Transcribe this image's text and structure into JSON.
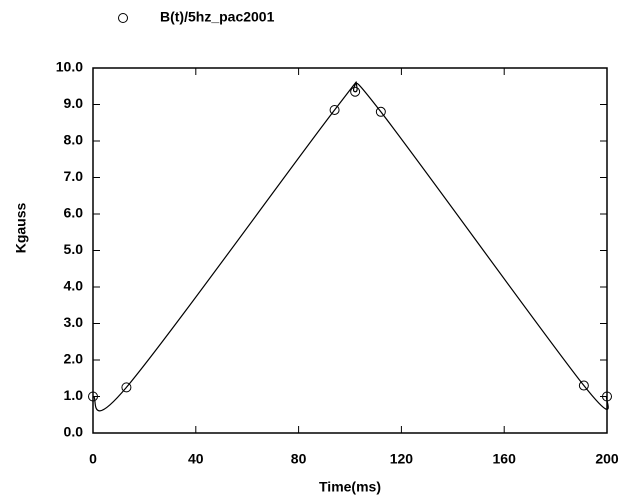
{
  "chart_data": {
    "type": "line",
    "x_label": "Time(ms)",
    "y_label": "Kgauss",
    "xlim": [
      0,
      200
    ],
    "xticks": [
      0,
      40,
      80,
      120,
      160,
      200
    ],
    "ylim": [
      0,
      10
    ],
    "yticks": [
      {
        "value": 0,
        "label": "0.0"
      },
      {
        "value": 1,
        "label": "1.0"
      },
      {
        "value": 2,
        "label": "2.0"
      },
      {
        "value": 3,
        "label": "3.0"
      },
      {
        "value": 4,
        "label": "4.0"
      },
      {
        "value": 5,
        "label": "5.0"
      },
      {
        "value": 6,
        "label": "6.0"
      },
      {
        "value": 7,
        "label": "7.0"
      },
      {
        "value": 8,
        "label": "8.0"
      },
      {
        "value": 9,
        "label": "9.0"
      },
      {
        "value": 10,
        "label": "10.0"
      }
    ],
    "series": [
      {
        "name": "B(t)/5hz_pac2001",
        "color": "#000000",
        "x": [
          0,
          13,
          94,
          102,
          112,
          191,
          200
        ],
        "values": [
          1.0,
          1.25,
          8.85,
          9.35,
          8.8,
          1.3,
          1.0
        ]
      }
    ]
  }
}
